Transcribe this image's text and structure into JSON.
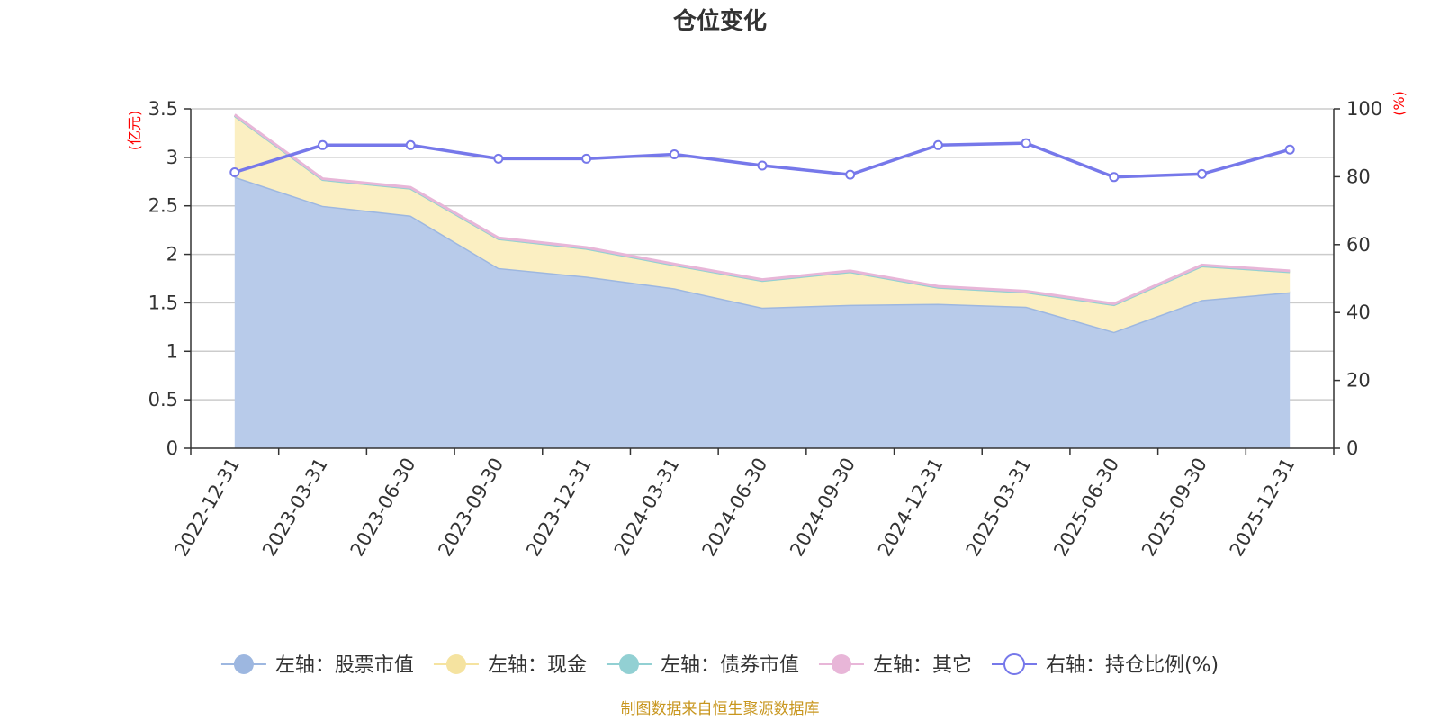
{
  "chart_data": {
    "type": "area",
    "title": "仓位变化",
    "categories": [
      "2022-12-31",
      "2023-03-31",
      "2023-06-30",
      "2023-09-30",
      "2023-12-31",
      "2024-03-31",
      "2024-06-30",
      "2024-09-30",
      "2024-12-31",
      "2025-03-31",
      "2025-06-30",
      "2025-09-30",
      "2025-12-31"
    ],
    "left_axis": {
      "unit": "(亿元)",
      "ylim": [
        0,
        3.5
      ],
      "ticks": [
        "0",
        "0.5",
        "1",
        "1.5",
        "2",
        "2.5",
        "3",
        "3.5"
      ]
    },
    "right_axis": {
      "unit": "(%)",
      "ylim": [
        0,
        100
      ],
      "ticks": [
        "0",
        "20",
        "40",
        "60",
        "80",
        "100"
      ]
    },
    "series": [
      {
        "name": "左轴：股票市值",
        "axis": "left",
        "kind": "area",
        "color": "#9db7e0",
        "fill": "#b8cbea",
        "values": [
          2.8,
          2.5,
          2.4,
          1.86,
          1.77,
          1.65,
          1.45,
          1.48,
          1.49,
          1.46,
          1.2,
          1.53,
          1.61
        ]
      },
      {
        "name": "左轴：现金",
        "axis": "left",
        "kind": "area-stack",
        "color": "#f5e3a0",
        "fill": "#fbefc2",
        "values": [
          0.63,
          0.27,
          0.28,
          0.3,
          0.29,
          0.24,
          0.28,
          0.34,
          0.17,
          0.15,
          0.28,
          0.35,
          0.21
        ]
      },
      {
        "name": "左轴：债券市值",
        "axis": "left",
        "kind": "area-stack",
        "color": "#92d0d3",
        "fill": "#bfe5e6",
        "values": [
          0,
          0,
          0,
          0,
          0,
          0,
          0,
          0,
          0,
          0,
          0,
          0,
          0
        ]
      },
      {
        "name": "左轴：其它",
        "axis": "left",
        "kind": "area-stack",
        "color": "#e8b6d8",
        "fill": "#f2d3e8",
        "values": [
          0.01,
          0.01,
          0.01,
          0.01,
          0.01,
          0.01,
          0.01,
          0.01,
          0.01,
          0.01,
          0.01,
          0.01,
          0.01
        ]
      },
      {
        "name": "右轴：持仓比例(%)",
        "axis": "right",
        "kind": "line",
        "color": "#7678ea",
        "values": [
          81.3,
          89.3,
          89.3,
          85.3,
          85.3,
          86.6,
          83.3,
          80.6,
          89.3,
          89.9,
          79.9,
          80.8,
          88.0
        ]
      }
    ],
    "grid": true,
    "legend_position": "bottom",
    "source": "制图数据来自恒生聚源数据库"
  }
}
